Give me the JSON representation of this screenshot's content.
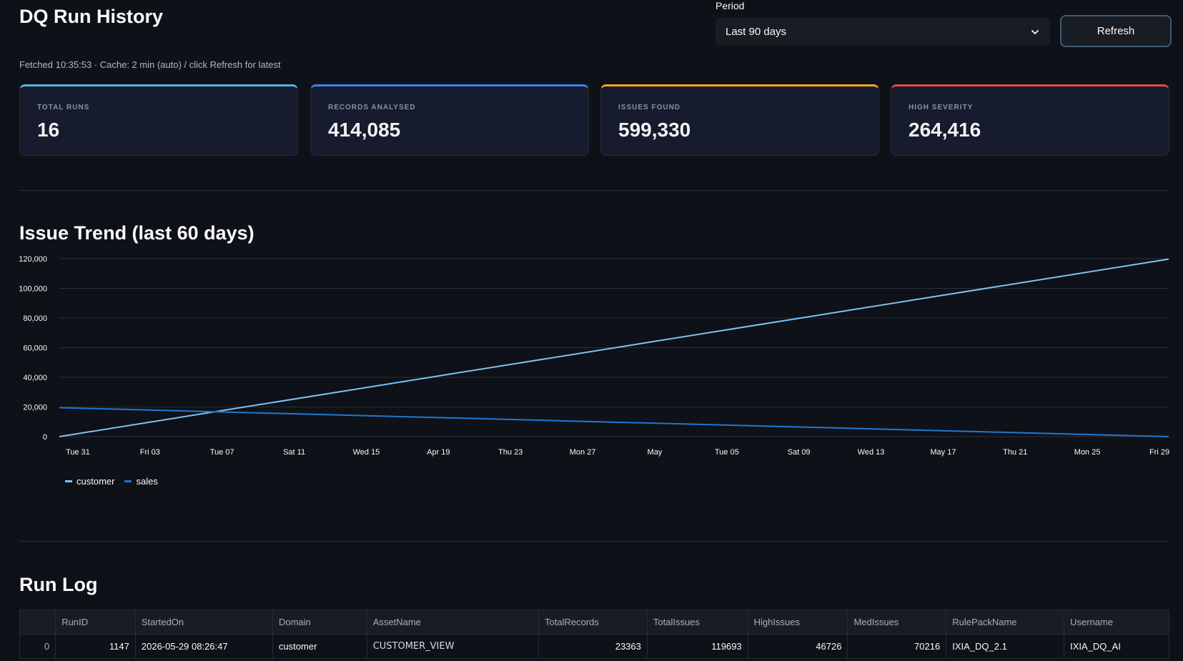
{
  "page": {
    "title": "DQ Run History",
    "fetched_note": "Fetched 10:35:53 · Cache: 2 min (auto) / click Refresh for latest"
  },
  "period": {
    "label": "Period",
    "selected": "Last 90 days"
  },
  "refresh": {
    "label": "Refresh"
  },
  "kpis": [
    {
      "label": "TOTAL RUNS",
      "value": "16",
      "accent": "#5ab4e8"
    },
    {
      "label": "RECORDS ANALYSED",
      "value": "414,085",
      "accent": "#3b82f6"
    },
    {
      "label": "ISSUES FOUND",
      "value": "599,330",
      "accent": "#f5a623"
    },
    {
      "label": "HIGH SEVERITY",
      "value": "264,416",
      "accent": "#e74c3c"
    }
  ],
  "trend": {
    "title": "Issue Trend (last 60 days)"
  },
  "chart_data": {
    "type": "line",
    "title": "Issue Trend (last 60 days)",
    "xlabel": "",
    "ylabel": "",
    "ylim": [
      0,
      120000
    ],
    "y_ticks": [
      "0",
      "20,000",
      "40,000",
      "60,000",
      "80,000",
      "100,000",
      "120,000"
    ],
    "y_tick_values": [
      0,
      20000,
      40000,
      60000,
      80000,
      100000,
      120000
    ],
    "x_ticks": [
      "Tue 31",
      "Fri 03",
      "Tue 07",
      "Sat 11",
      "Wed 15",
      "Apr 19",
      "Thu 23",
      "Mon 27",
      "May",
      "Tue 05",
      "Sat 09",
      "Wed 13",
      "May 17",
      "Thu 21",
      "Mon 25",
      "Fri 29"
    ],
    "x_range": [
      "2026-03-31",
      "2026-05-29"
    ],
    "grid": true,
    "legend_position": "bottom-left",
    "series": [
      {
        "name": "customer",
        "color": "#7cc3f2",
        "points": [
          [
            "2026-03-31",
            0
          ],
          [
            "2026-05-29",
            119693
          ]
        ]
      },
      {
        "name": "sales",
        "color": "#1f77d4",
        "points": [
          [
            "2026-03-31",
            19500
          ],
          [
            "2026-05-29",
            0
          ]
        ]
      }
    ]
  },
  "run_log": {
    "title": "Run Log",
    "columns": [
      "",
      "RunID",
      "StartedOn",
      "Domain",
      "AssetName",
      "TotalRecords",
      "TotalIssues",
      "HighIssues",
      "MedIssues",
      "RulePackName",
      "Username"
    ],
    "rows": [
      [
        "0",
        "1147",
        "2026-05-29 08:26:47",
        "customer",
        "CUSTOMER_VIEW",
        "23363",
        "119693",
        "46726",
        "70216",
        "IXIA_DQ_2.1",
        "IXIA_DQ_AI"
      ]
    ]
  }
}
